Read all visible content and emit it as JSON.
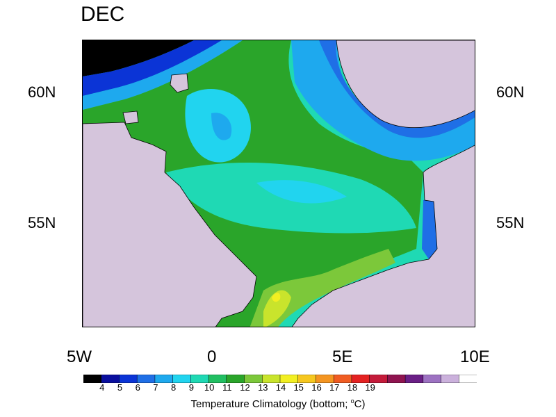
{
  "title": "DEC",
  "map": {
    "lat_labels": [
      "60N",
      "55N"
    ],
    "lon_labels": [
      "5W",
      "0",
      "5E",
      "10E"
    ],
    "land_color": "#d5c5dc",
    "nodata_color": "#ffffff"
  },
  "colorbar": {
    "levels": [
      "4",
      "5",
      "6",
      "7",
      "8",
      "9",
      "10",
      "11",
      "12",
      "13",
      "14",
      "15",
      "16",
      "17",
      "18",
      "19"
    ],
    "colors": [
      "#000000",
      "#0a0f9e",
      "#0b34d6",
      "#1f6fe6",
      "#1ea9ee",
      "#21d4ef",
      "#1fd9b4",
      "#21bf62",
      "#2aa52a",
      "#7cc83a",
      "#c9e42c",
      "#f2ef22",
      "#f6c71f",
      "#f49521",
      "#f05c22",
      "#e42121",
      "#c41b3a",
      "#8f1450",
      "#6a1f86",
      "#9d72c2",
      "#cbb1dc",
      "#ffffff"
    ],
    "label_main": "Temperature Climatology (bottom; ",
    "label_unit": "C)",
    "label_deg": "o"
  }
}
